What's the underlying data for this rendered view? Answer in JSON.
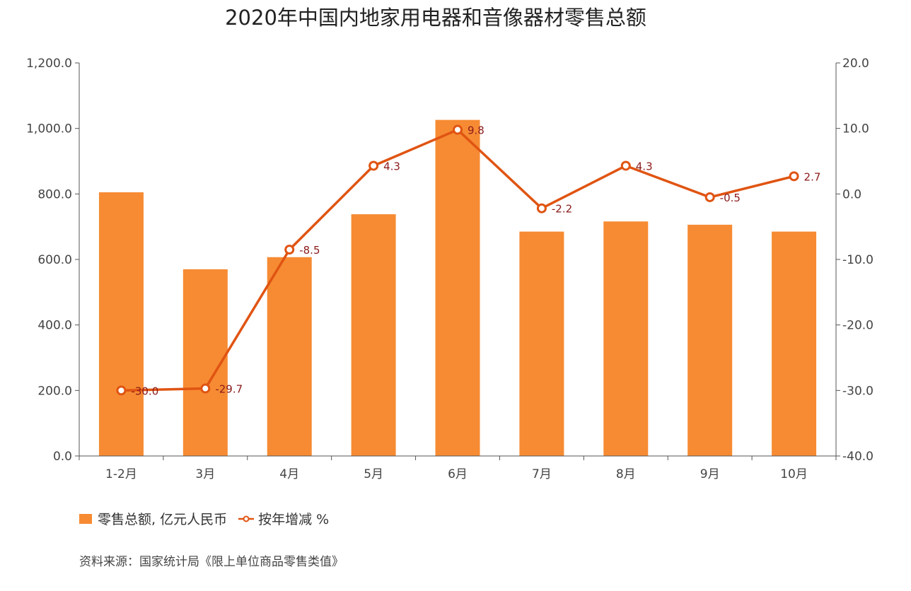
{
  "chart_data": {
    "type": "bar",
    "title": "2020年中国内地家用电器和音像器材零售总额",
    "categories": [
      "1-2月",
      "3月",
      "4月",
      "5月",
      "6月",
      "7月",
      "8月",
      "9月",
      "10月"
    ],
    "series": [
      {
        "name": "零售总额, 亿元人民币",
        "type": "bar",
        "axis": "left",
        "color": "#F68B33",
        "values": [
          805,
          570,
          607,
          738,
          1026,
          685,
          716,
          706,
          685
        ]
      },
      {
        "name": "按年增减 %",
        "type": "line",
        "axis": "right",
        "color": "#E05412",
        "values": [
          -30.0,
          -29.7,
          -8.5,
          4.3,
          9.8,
          -2.2,
          4.3,
          -0.5,
          2.7
        ],
        "labels": [
          "-30.0",
          "-29.7",
          "-8.5",
          "4.3",
          "9.8",
          "-2.2",
          "4.3",
          "-0.5",
          "2.7"
        ]
      }
    ],
    "y_left": {
      "ylim": [
        0,
        1200
      ],
      "ticks": [
        0,
        200,
        400,
        600,
        800,
        1000,
        1200
      ],
      "tick_labels": [
        "0.0",
        "200.0",
        "400.0",
        "600.0",
        "800.0",
        "1,000.0",
        "1,200.0"
      ]
    },
    "y_right": {
      "ylim": [
        -40,
        20
      ],
      "ticks": [
        -40,
        -30,
        -20,
        -10,
        0,
        10,
        20
      ],
      "tick_labels": [
        "-40.0",
        "-30.0",
        "-20.0",
        "-10.0",
        "0.0",
        "10.0",
        "20.0"
      ]
    },
    "legend": "bottom-left",
    "grid": false,
    "source": "资料来源：国家统计局《限上单位商品零售类值》"
  }
}
